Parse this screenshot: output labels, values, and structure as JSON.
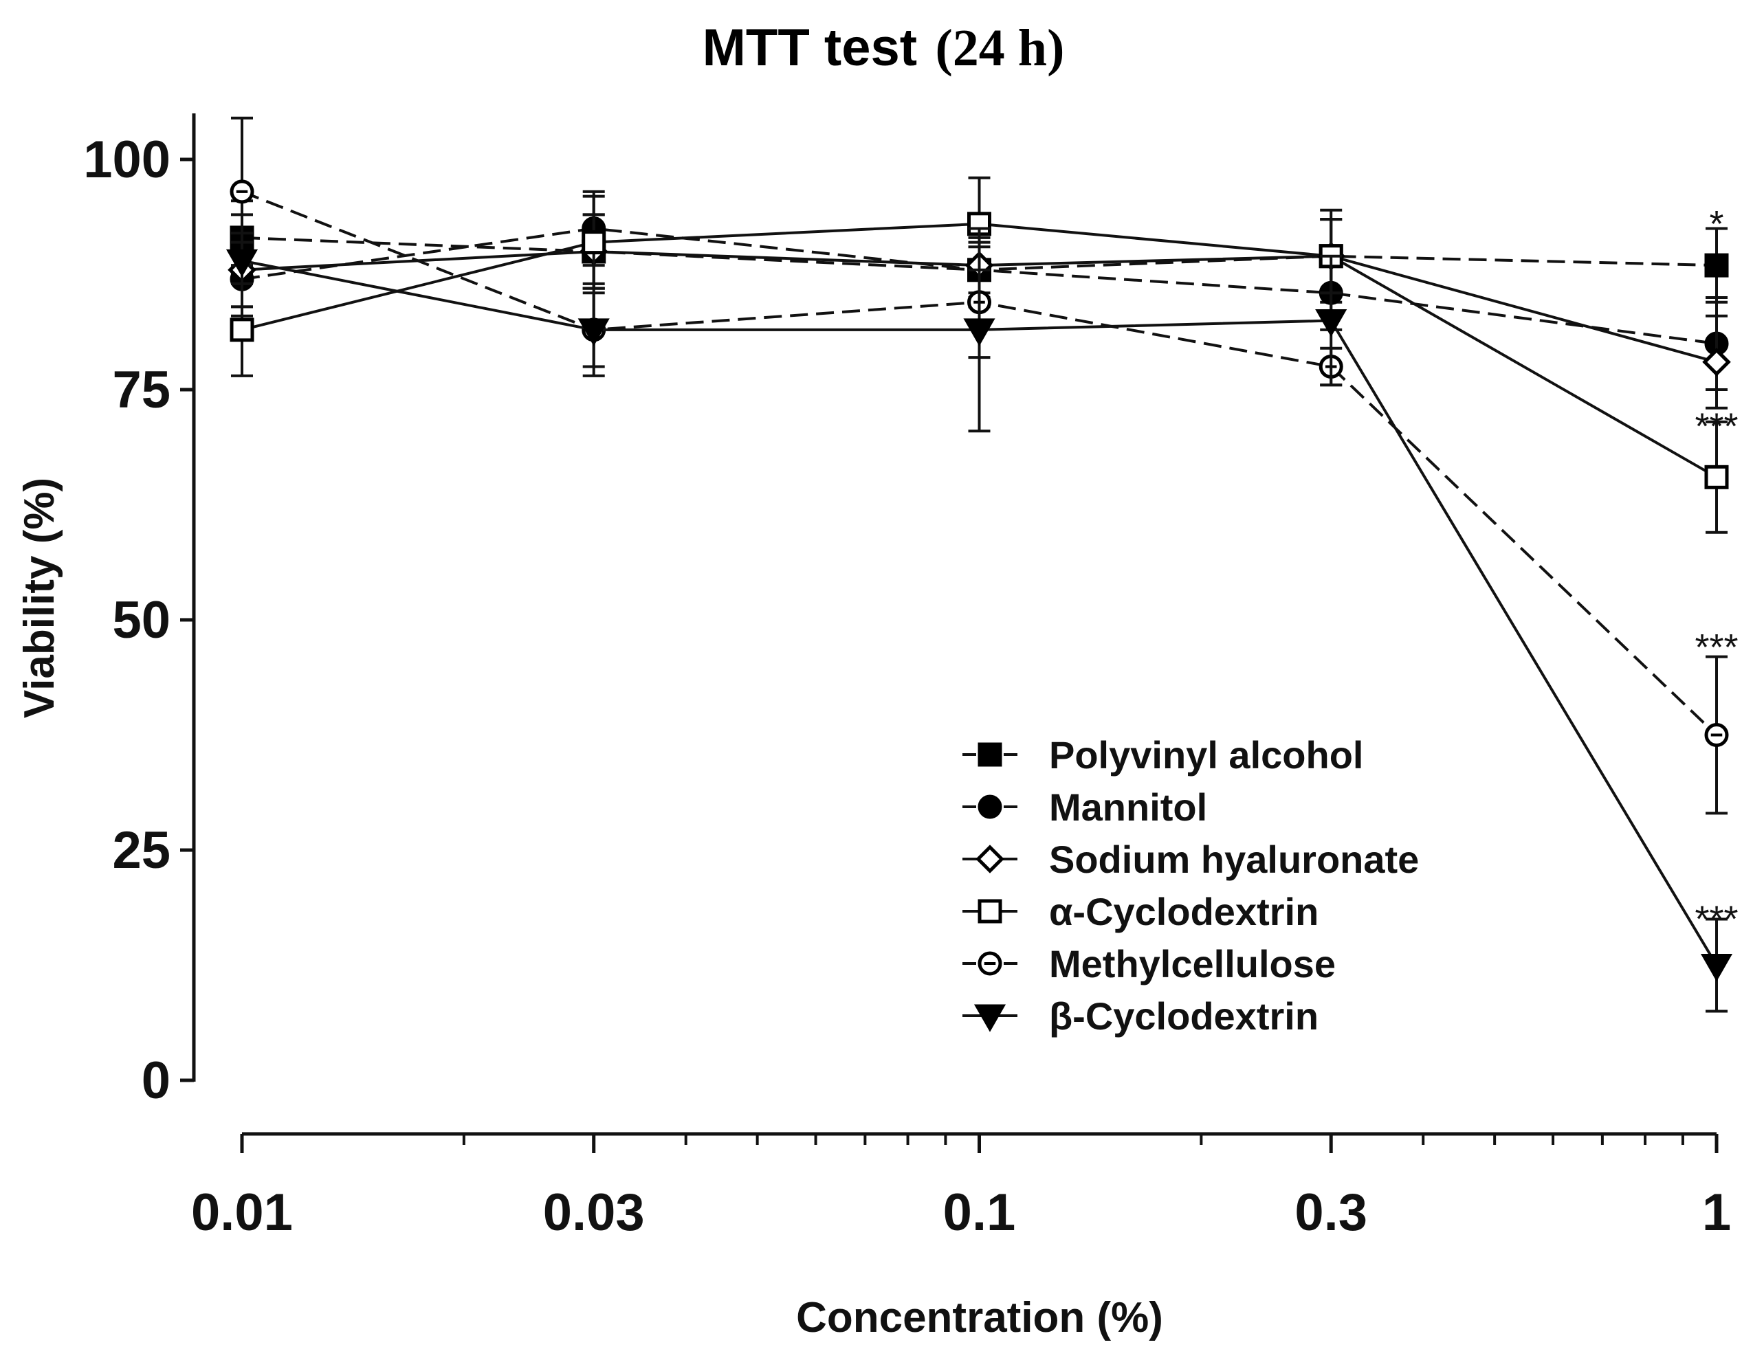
{
  "chart_data": {
    "type": "line",
    "title": "MTT test",
    "title_suffix": "(24 h)",
    "xlabel": "Concentration (%)",
    "ylabel": "Viability (%)",
    "x_scale": "log",
    "x": [
      0.01,
      0.03,
      0.1,
      0.3,
      1
    ],
    "x_tick_labels": [
      "0.01",
      "0.03",
      "0.1",
      "0.3",
      "1"
    ],
    "ylim": [
      0,
      100
    ],
    "y_ticks": [
      0,
      25,
      50,
      75,
      100
    ],
    "y_tick_labels": [
      "0",
      "25",
      "50",
      "75",
      "100"
    ],
    "series": [
      {
        "name": "Polyvinyl alcohol",
        "marker": "square-filled",
        "dash": true,
        "values": [
          91.5,
          90,
          88,
          89.5,
          88.5
        ],
        "errors": [
          4,
          4,
          4,
          5,
          4
        ]
      },
      {
        "name": "Mannitol",
        "marker": "circle-filled",
        "dash": true,
        "values": [
          87,
          92.5,
          88,
          85.5,
          80
        ],
        "errors": [
          4,
          4,
          3,
          4,
          5
        ]
      },
      {
        "name": "Sodium hyaluronate",
        "marker": "diamond-open",
        "dash": false,
        "values": [
          88,
          90,
          88.5,
          89.5,
          78
        ],
        "errors": [
          4,
          4,
          3,
          4,
          5
        ]
      },
      {
        "name": "α-Cyclodextrin",
        "marker": "square-open",
        "dash": false,
        "values": [
          81.5,
          91,
          93,
          89.5,
          65.5
        ],
        "errors": [
          5,
          5,
          5,
          4,
          6
        ]
      },
      {
        "name": "Methylcellulose",
        "marker": "circle-open",
        "dash": true,
        "values": [
          96.5,
          81.5,
          84.5,
          77.5,
          37.5
        ],
        "errors": [
          8,
          5,
          6,
          2,
          8.5
        ]
      },
      {
        "name": "β-Cyclodextrin",
        "marker": "triangle-down-filled",
        "dash": false,
        "values": [
          89,
          81.5,
          81.5,
          82.5,
          12.5
        ],
        "errors": [
          5,
          4,
          11,
          7,
          5
        ]
      }
    ],
    "annotations": [
      {
        "text": "*",
        "x": 1,
        "y": 93
      },
      {
        "text": "***",
        "x": 1,
        "y": 71
      },
      {
        "text": "***",
        "x": 1,
        "y": 47
      },
      {
        "text": "***",
        "x": 1,
        "y": 17.5
      }
    ],
    "legend_position": "lower-right",
    "grid": false
  }
}
